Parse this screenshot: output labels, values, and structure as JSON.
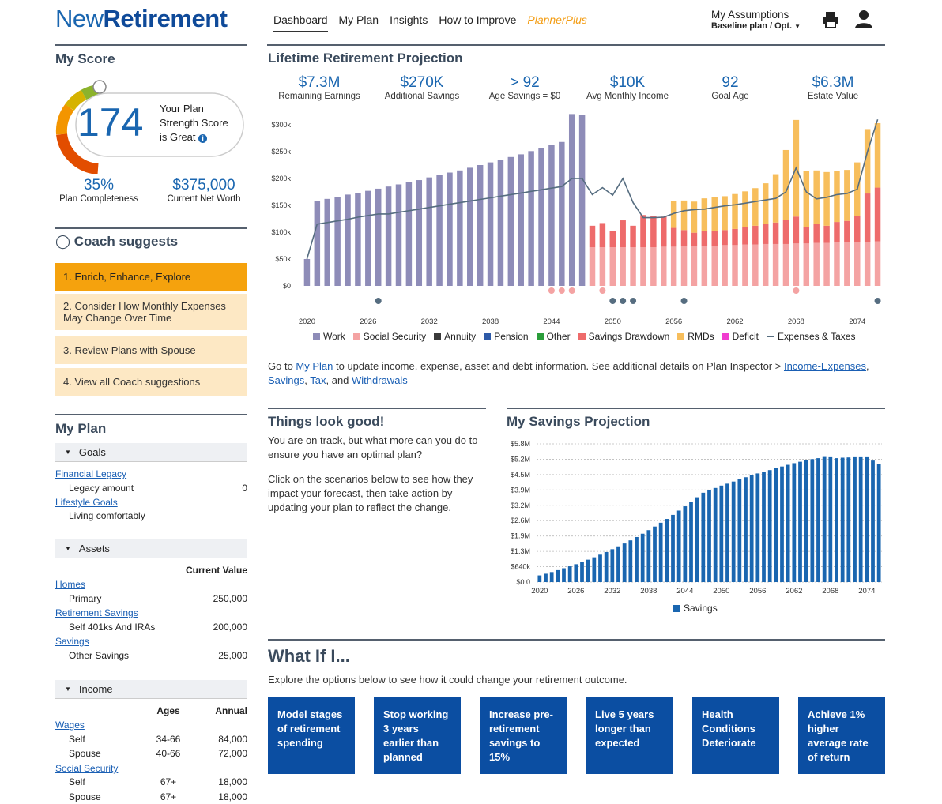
{
  "header": {
    "logo_part1": "New",
    "logo_part2": "Retirement",
    "nav": [
      "Dashboard",
      "My Plan",
      "Insights",
      "How to Improve",
      "PlannerPlus"
    ],
    "assumptions_title": "My Assumptions",
    "assumptions_sub": "Baseline plan / Opt."
  },
  "score": {
    "title": "My Score",
    "value": "174",
    "text1": "Your Plan",
    "text2": "Strength Score",
    "text3": "is Great",
    "completeness_value": "35%",
    "completeness_label": "Plan Completeness",
    "networth_value": "$375,000",
    "networth_label": "Current Net Worth"
  },
  "coach": {
    "title": "Coach suggests",
    "items": [
      "1. Enrich, Enhance, Explore",
      "2. Consider How Monthly Expenses May Change Over Time",
      "3. Review Plans with Spouse",
      "4. View all Coach suggestions"
    ]
  },
  "myplan": {
    "title": "My Plan",
    "goals_header": "Goals",
    "financial_legacy": "Financial Legacy",
    "legacy_amount_label": "Legacy amount",
    "legacy_amount_value": "0",
    "lifestyle_goals": "Lifestyle Goals",
    "living": "Living comfortably",
    "assets_header": "Assets",
    "current_value": "Current Value",
    "homes": "Homes",
    "primary": "Primary",
    "primary_val": "250,000",
    "retirement_savings": "Retirement Savings",
    "self401k": "Self 401ks And IRAs",
    "self401k_val": "200,000",
    "savings": "Savings",
    "other_savings": "Other Savings",
    "other_savings_val": "25,000",
    "income_header": "Income",
    "ages": "Ages",
    "annual": "Annual",
    "wages": "Wages",
    "self": "Self",
    "self_ages": "34-66",
    "self_annual": "84,000",
    "spouse": "Spouse",
    "spouse_ages": "40-66",
    "spouse_annual": "72,000",
    "social_security": "Social Security",
    "ss_self": "Self",
    "ss_self_ages": "67+",
    "ss_self_annual": "18,000",
    "ss_spouse": "Spouse",
    "ss_spouse_ages": "67+",
    "ss_spouse_annual": "18,000"
  },
  "projection": {
    "title": "Lifetime Retirement Projection",
    "stats": [
      {
        "value": "$7.3M",
        "label": "Remaining Earnings"
      },
      {
        "value": "$270K",
        "label": "Additional Savings"
      },
      {
        "value": "> 92",
        "label": "Age Savings = $0"
      },
      {
        "value": "$10K",
        "label": "Avg Monthly Income"
      },
      {
        "value": "92",
        "label": "Goal Age"
      },
      {
        "value": "$6.3M",
        "label": "Estate Value"
      }
    ],
    "legend": [
      "Work",
      "Social Security",
      "Annuity",
      "Pension",
      "Other",
      "Savings Drawdown",
      "RMDs",
      "Deficit",
      "Expenses & Taxes"
    ],
    "colors": {
      "work": "#8e8cb8",
      "social_security": "#f4a3a3",
      "annuity": "#3a3a3a",
      "pension": "#2e5aa8",
      "other": "#2a9d3a",
      "drawdown": "#ee6b6b",
      "rmds": "#f7be5c",
      "deficit": "#f03ccf",
      "expenses": "#566d80"
    },
    "note_pre": "Go to ",
    "note_link1": "My Plan",
    "note_mid": " to update income, expense, asset and debt information. See additional details on Plan Inspector > ",
    "note_link2": "Income-Expenses",
    "note_link3": "Savings",
    "note_link4": "Tax",
    "note_and": ", and ",
    "note_link5": "Withdrawals"
  },
  "good": {
    "title": "Things look good!",
    "p1": "You are on track, but what more can you do to ensure you have an optimal plan?",
    "p2": "Click on the scenarios below to see how they impact your forecast, then take action by updating your plan to reflect the change."
  },
  "savings_proj": {
    "title": "My Savings Projection",
    "legend": "Savings"
  },
  "whatif": {
    "title": "What If I...",
    "desc": "Explore the options below to see how it could change your retirement outcome.",
    "cards": [
      "Model stages of retirement spending",
      "Stop working 3 years earlier than planned",
      "Increase pre-retirement savings to 15%",
      "Live 5 years longer than expected",
      "Health Conditions Deteriorate",
      "Achieve 1% higher average rate of return"
    ]
  },
  "chart_data": [
    {
      "type": "bar",
      "title": "Lifetime Retirement Projection",
      "x": [
        2020,
        2021,
        2022,
        2023,
        2024,
        2025,
        2026,
        2027,
        2028,
        2029,
        2030,
        2031,
        2032,
        2033,
        2034,
        2035,
        2036,
        2037,
        2038,
        2039,
        2040,
        2041,
        2042,
        2043,
        2044,
        2045,
        2046,
        2047,
        2048,
        2049,
        2050,
        2051,
        2052,
        2053,
        2054,
        2055,
        2056,
        2057,
        2058,
        2059,
        2060,
        2061,
        2062,
        2063,
        2064,
        2065,
        2066,
        2067,
        2068,
        2069,
        2070,
        2071,
        2072,
        2073,
        2074,
        2075,
        2076
      ],
      "ylim": [
        0,
        300000
      ],
      "yticks": [
        "$0",
        "$50k",
        "$100k",
        "$150k",
        "$200k",
        "$250k",
        "$300k"
      ],
      "xticks": [
        "2020",
        "2026",
        "2032",
        "2038",
        "2044",
        "2050",
        "2056",
        "2062",
        "2068",
        "2074"
      ],
      "series": [
        {
          "name": "Work",
          "values": [
            50000,
            158000,
            162000,
            166000,
            170000,
            173000,
            177000,
            181000,
            185000,
            189000,
            193000,
            197000,
            202000,
            206000,
            211000,
            215000,
            220000,
            225000,
            230000,
            235000,
            240000,
            245000,
            251000,
            256000,
            262000,
            268000,
            320000,
            318000,
            0,
            0,
            0,
            0,
            0,
            0,
            0,
            0,
            0,
            0,
            0,
            0,
            0,
            0,
            0,
            0,
            0,
            0,
            0,
            0,
            0,
            0,
            0,
            0,
            0,
            0,
            0,
            0,
            0
          ]
        },
        {
          "name": "Social Security",
          "values": [
            0,
            0,
            0,
            0,
            0,
            0,
            0,
            0,
            0,
            0,
            0,
            0,
            0,
            0,
            0,
            0,
            0,
            0,
            0,
            0,
            0,
            0,
            0,
            0,
            0,
            0,
            0,
            0,
            72000,
            72000,
            72000,
            72000,
            72000,
            72000,
            72000,
            73000,
            73000,
            74000,
            74000,
            75000,
            75000,
            76000,
            76000,
            77000,
            77000,
            78000,
            78000,
            78000,
            79000,
            79000,
            80000,
            80000,
            81000,
            81000,
            82000,
            82000,
            83000
          ]
        },
        {
          "name": "Savings Drawdown",
          "values": [
            0,
            0,
            0,
            0,
            0,
            0,
            0,
            0,
            0,
            0,
            0,
            0,
            0,
            0,
            0,
            0,
            0,
            0,
            0,
            0,
            0,
            0,
            0,
            0,
            0,
            0,
            0,
            0,
            40000,
            45000,
            30000,
            50000,
            40000,
            60000,
            58000,
            56000,
            35000,
            30000,
            25000,
            28000,
            28000,
            28000,
            30000,
            32000,
            35000,
            38000,
            40000,
            45000,
            50000,
            30000,
            35000,
            32000,
            38000,
            40000,
            48000,
            90000,
            100000
          ]
        },
        {
          "name": "RMDs",
          "values": [
            0,
            0,
            0,
            0,
            0,
            0,
            0,
            0,
            0,
            0,
            0,
            0,
            0,
            0,
            0,
            0,
            0,
            0,
            0,
            0,
            0,
            0,
            0,
            0,
            0,
            0,
            0,
            0,
            0,
            0,
            0,
            0,
            0,
            0,
            0,
            0,
            50000,
            55000,
            58000,
            60000,
            62000,
            63000,
            65000,
            67000,
            70000,
            75000,
            90000,
            130000,
            180000,
            105000,
            100000,
            100000,
            95000,
            95000,
            100000,
            120000,
            120000
          ]
        },
        {
          "name": "Expenses & Taxes",
          "values": [
            50000,
            115000,
            118000,
            121000,
            124000,
            128000,
            131000,
            134000,
            134000,
            137000,
            140000,
            143000,
            146000,
            149000,
            152000,
            155000,
            158000,
            161000,
            164000,
            167000,
            170000,
            173000,
            176000,
            179000,
            182000,
            185000,
            200000,
            200000,
            170000,
            183000,
            169000,
            200000,
            155000,
            127000,
            127000,
            128000,
            135000,
            140000,
            142000,
            143000,
            146000,
            149000,
            151000,
            154000,
            157000,
            160000,
            163000,
            175000,
            220000,
            175000,
            162000,
            165000,
            170000,
            172000,
            180000,
            250000,
            310000
          ]
        }
      ]
    },
    {
      "type": "bar",
      "title": "My Savings Projection",
      "x": [
        2020,
        2021,
        2022,
        2023,
        2024,
        2025,
        2026,
        2027,
        2028,
        2029,
        2030,
        2031,
        2032,
        2033,
        2034,
        2035,
        2036,
        2037,
        2038,
        2039,
        2040,
        2041,
        2042,
        2043,
        2044,
        2045,
        2046,
        2047,
        2048,
        2049,
        2050,
        2051,
        2052,
        2053,
        2054,
        2055,
        2056,
        2057,
        2058,
        2059,
        2060,
        2061,
        2062,
        2063,
        2064,
        2065,
        2066,
        2067,
        2068,
        2069,
        2070,
        2071,
        2072,
        2073,
        2074,
        2075,
        2076
      ],
      "yticks": [
        "$0.0",
        "$640k",
        "$1.3M",
        "$1.9M",
        "$2.6M",
        "$3.2M",
        "$3.9M",
        "$4.5M",
        "$5.2M",
        "$5.8M"
      ],
      "xticks": [
        "2020",
        "2026",
        "2032",
        "2038",
        "2044",
        "2050",
        "2056",
        "2062",
        "2068",
        "2074"
      ],
      "ylim": [
        0,
        5800000
      ],
      "series": [
        {
          "name": "Savings",
          "values": [
            280000,
            350000,
            420000,
            500000,
            580000,
            660000,
            750000,
            840000,
            940000,
            1040000,
            1150000,
            1260000,
            1380000,
            1500000,
            1620000,
            1750000,
            1890000,
            2030000,
            2180000,
            2330000,
            2490000,
            2650000,
            2820000,
            3000000,
            3180000,
            3370000,
            3560000,
            3750000,
            3850000,
            3950000,
            4050000,
            4130000,
            4220000,
            4310000,
            4400000,
            4480000,
            4560000,
            4630000,
            4700000,
            4780000,
            4850000,
            4920000,
            4990000,
            5050000,
            5110000,
            5160000,
            5200000,
            5250000,
            5240000,
            5200000,
            5220000,
            5230000,
            5240000,
            5240000,
            5240000,
            5100000,
            4950000
          ]
        }
      ]
    }
  ]
}
